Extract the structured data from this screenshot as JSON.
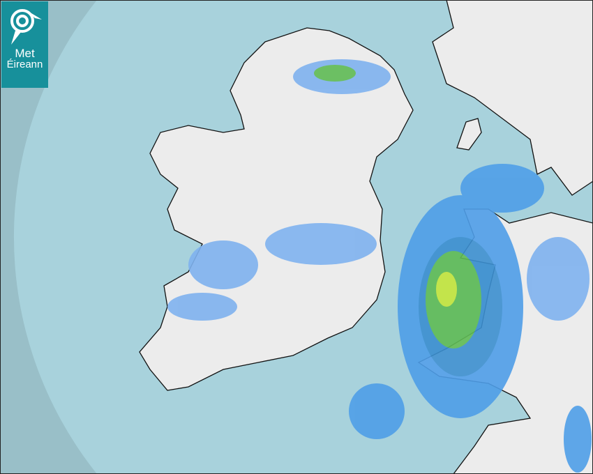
{
  "logo": {
    "line1": "Met",
    "line2": "Éireann",
    "icon": "swirl-logo-icon"
  },
  "map": {
    "type": "precipitation-radar",
    "colors": {
      "sea_outside": "#99bfc8",
      "sea_radar": "#a8d2dc",
      "land": "#eeeeee",
      "light_rain": "#7fb2ef",
      "moderate_rain": "#2f86cf",
      "heavy_rain": "#59b94a",
      "very_heavy": "#c8e83a",
      "brand": "#17909b"
    }
  }
}
